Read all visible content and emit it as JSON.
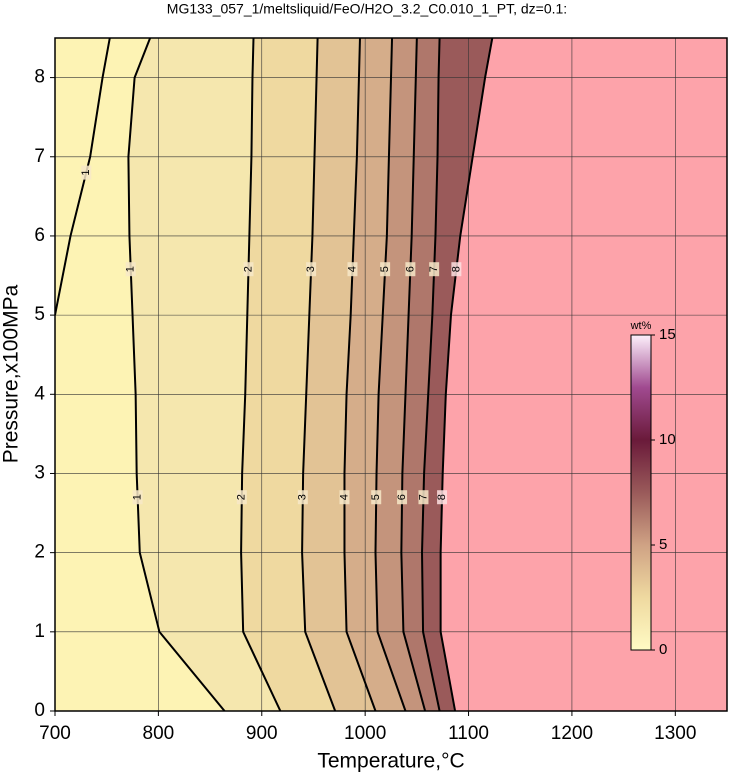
{
  "chart_data": {
    "type": "contour",
    "title": "MG133_057_1/meltsliquid/FeO/H2O_3.2_C0.010_1_PT, dz=0.1:",
    "xlabel": "Temperature,°C",
    "ylabel": "Pressure,x100MPa",
    "xlim": [
      700,
      1350
    ],
    "ylim": [
      0,
      8.5
    ],
    "xticks": [
      700,
      800,
      900,
      1000,
      1100,
      1200,
      1300
    ],
    "yticks": [
      0,
      1,
      2,
      3,
      4,
      5,
      6,
      7,
      8
    ],
    "grid": true,
    "y": [
      0,
      1,
      2,
      3,
      4,
      5,
      6,
      7,
      8,
      8.5
    ],
    "contours": [
      {
        "level": 1,
        "values": [
          864,
          801,
          782,
          779,
          778,
          775,
          772,
          771,
          777,
          792
        ]
      },
      {
        "level": 1,
        "values": [
          null,
          null,
          null,
          null,
          null,
          700,
          715,
          734,
          746,
          753
        ]
      },
      {
        "level": 2,
        "values": [
          918,
          882,
          880,
          881,
          884,
          886,
          888,
          890,
          891,
          892
        ]
      },
      {
        "level": 3,
        "values": [
          971,
          942,
          939,
          940,
          943,
          946,
          949,
          951,
          953,
          954
        ]
      },
      {
        "level": 4,
        "values": [
          1010,
          982,
          980,
          980,
          982,
          986,
          989,
          992,
          994,
          995
        ]
      },
      {
        "level": 5,
        "values": [
          1039,
          1012,
          1010,
          1011,
          1013,
          1017,
          1021,
          1023,
          1025,
          1026
        ]
      },
      {
        "level": 6,
        "values": [
          1058,
          1037,
          1035,
          1036,
          1039,
          1042,
          1045,
          1047,
          1049,
          1050
        ]
      },
      {
        "level": 7,
        "values": [
          1072,
          1056,
          1055,
          1057,
          1061,
          1065,
          1068,
          1070,
          1071,
          1072
        ]
      },
      {
        "level": 8,
        "values": [
          1087,
          1073,
          1073,
          1075,
          1078,
          1083,
          1092,
          1104,
          1116,
          1123
        ]
      }
    ],
    "base_color": "#fdf3b4",
    "above_color": "#fda3aa",
    "colormap": [
      "#fffbc4",
      "#efd9a0",
      "#cfa284",
      "#9a5a5a",
      "#6a1a3a",
      "#a04a90",
      "#fdf0fb"
    ],
    "colorbar": {
      "label": "wt%",
      "clim": [
        0,
        15
      ],
      "ticks": [
        0,
        5,
        10,
        15
      ]
    }
  }
}
